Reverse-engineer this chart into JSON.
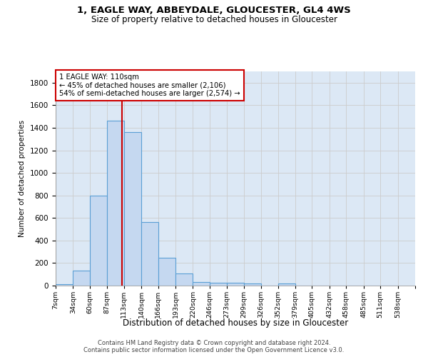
{
  "title_line1": "1, EAGLE WAY, ABBEYDALE, GLOUCESTER, GL4 4WS",
  "title_line2": "Size of property relative to detached houses in Gloucester",
  "xlabel": "Distribution of detached houses by size in Gloucester",
  "ylabel": "Number of detached properties",
  "bin_labels": [
    "7sqm",
    "34sqm",
    "60sqm",
    "87sqm",
    "113sqm",
    "140sqm",
    "166sqm",
    "193sqm",
    "220sqm",
    "246sqm",
    "273sqm",
    "299sqm",
    "326sqm",
    "352sqm",
    "379sqm",
    "405sqm",
    "432sqm",
    "458sqm",
    "485sqm",
    "511sqm",
    "538sqm"
  ],
  "bin_edges": [
    7,
    34,
    60,
    87,
    113,
    140,
    166,
    193,
    220,
    246,
    273,
    299,
    326,
    352,
    379,
    405,
    432,
    458,
    485,
    511,
    538
  ],
  "bar_heights": [
    10,
    130,
    795,
    1465,
    1360,
    565,
    250,
    108,
    33,
    27,
    27,
    20,
    0,
    20,
    0,
    0,
    0,
    0,
    0,
    0
  ],
  "bar_color": "#c5d8f0",
  "bar_edge_color": "#5a9fd4",
  "grid_color": "#cccccc",
  "vline_x": 110,
  "vline_color": "#cc0000",
  "annotation_line1": "1 EAGLE WAY: 110sqm",
  "annotation_line2": "← 45% of detached houses are smaller (2,106)",
  "annotation_line3": "54% of semi-detached houses are larger (2,574) →",
  "annotation_box_color": "#cc0000",
  "ylim": [
    0,
    1900
  ],
  "yticks": [
    0,
    200,
    400,
    600,
    800,
    1000,
    1200,
    1400,
    1600,
    1800
  ],
  "footer_line1": "Contains HM Land Registry data © Crown copyright and database right 2024.",
  "footer_line2": "Contains public sector information licensed under the Open Government Licence v3.0.",
  "bg_color": "#dce8f5"
}
